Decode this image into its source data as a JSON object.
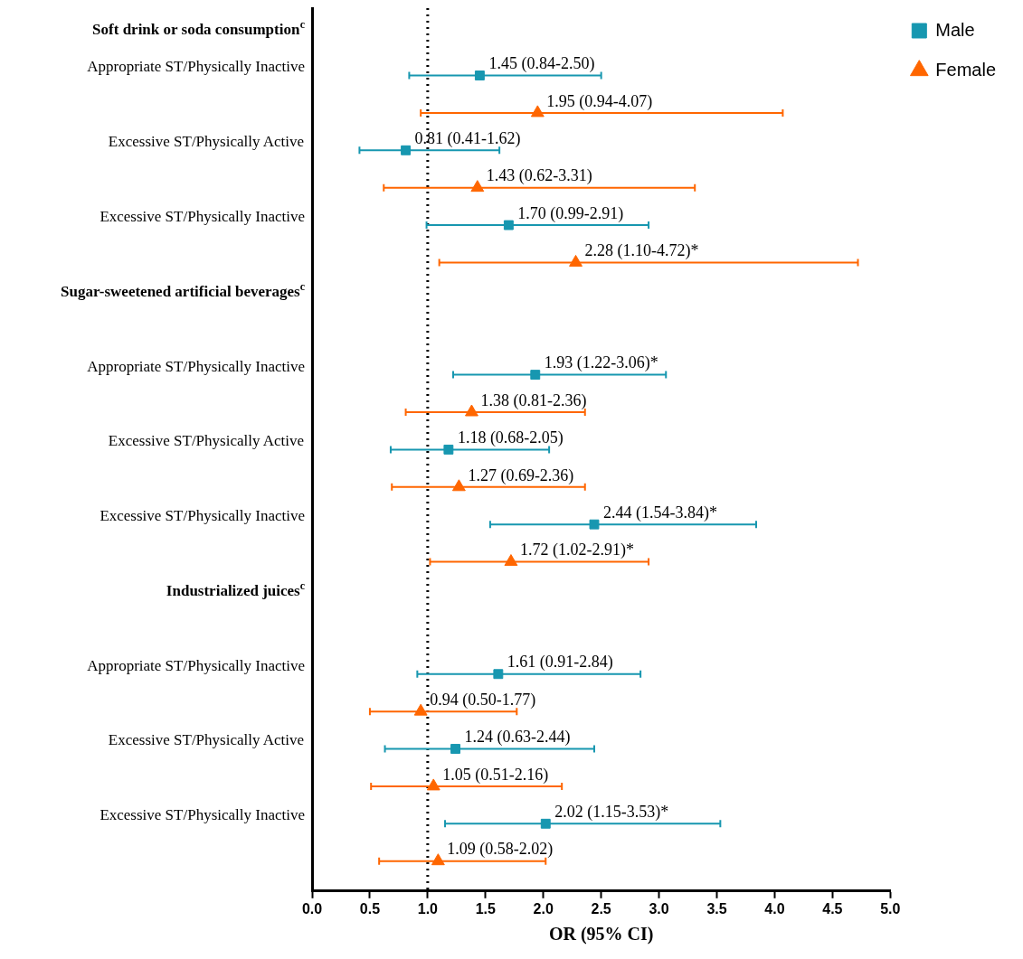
{
  "chart_data": {
    "type": "scatter",
    "orientation": "horizontal",
    "xlabel": "OR (95% CI)",
    "xlim": [
      0,
      5
    ],
    "xticks": [
      {
        "value": 0,
        "label": "0.0"
      },
      {
        "value": 0.5,
        "label": "0.5"
      },
      {
        "value": 1,
        "label": "1.0"
      },
      {
        "value": 1.5,
        "label": "1.5"
      },
      {
        "value": 2,
        "label": "2.0"
      },
      {
        "value": 2.5,
        "label": "2.5"
      },
      {
        "value": 3,
        "label": "3.0"
      },
      {
        "value": 3.5,
        "label": "3.5"
      },
      {
        "value": 4,
        "label": "4.0"
      },
      {
        "value": 4.5,
        "label": "4.5"
      },
      {
        "value": 5,
        "label": "5.0"
      }
    ],
    "categories": [
      "Soft drink or soda consumption$^{c}$",
      "Appropriate ST/Physically Inactive",
      null,
      "Excessive ST/Physically Active",
      null,
      "Excessive ST/Physically Inactive",
      null,
      "Sugar-sweetened artificial beverages$^{c}$",
      null,
      "Appropriate ST/Physically Inactive",
      null,
      "Excessive ST/Physically Active",
      null,
      "Excessive ST/Physically Inactive",
      null,
      "Industrialized juices$^{c}$",
      null,
      "Appropriate ST/Physically Inactive",
      null,
      "Excessive ST/Physically Active",
      null,
      "Excessive ST/Physically Inactive",
      null
    ],
    "series": [
      {
        "name": "Male",
        "color": "#1797b0",
        "marker": "square",
        "values": [
          null,
          1.45,
          null,
          0.81,
          null,
          1.7,
          null,
          null,
          null,
          1.93,
          null,
          1.18,
          null,
          2.44,
          null,
          null,
          null,
          1.61,
          null,
          1.24,
          null,
          2.02,
          null
        ],
        "errors": [
          null,
          [
            0.84,
            2.5
          ],
          null,
          [
            0.41,
            1.62
          ],
          null,
          [
            0.99,
            2.91
          ],
          null,
          null,
          null,
          [
            1.22,
            3.06
          ],
          null,
          [
            0.68,
            2.05
          ],
          null,
          [
            1.54,
            3.84
          ],
          null,
          null,
          null,
          [
            0.91,
            2.84
          ],
          null,
          [
            0.63,
            2.44
          ],
          null,
          [
            1.15,
            3.53
          ],
          null
        ],
        "value_labels": [
          null,
          "1.45 (0.84-2.50)",
          null,
          "0.81 (0.41-1.62)",
          null,
          "1.70 (0.99-2.91)",
          null,
          null,
          null,
          "1.93 (1.22-3.06)*",
          null,
          "1.18 (0.68-2.05)",
          null,
          "2.44 (1.54-3.84)*",
          null,
          null,
          null,
          "1.61 (0.91-2.84)",
          null,
          "1.24 (0.63-2.44)",
          null,
          "2.02 (1.15-3.53)*",
          null
        ]
      },
      {
        "name": "Female",
        "color": "#ff6600",
        "marker": "triangle",
        "values": [
          null,
          null,
          1.95,
          null,
          1.43,
          null,
          2.28,
          null,
          null,
          null,
          1.38,
          null,
          1.27,
          null,
          1.72,
          null,
          null,
          null,
          0.94,
          null,
          1.05,
          null,
          1.09
        ],
        "errors": [
          null,
          null,
          [
            0.94,
            4.07
          ],
          null,
          [
            0.62,
            3.31
          ],
          null,
          [
            1.1,
            4.72
          ],
          null,
          null,
          null,
          [
            0.81,
            2.36
          ],
          null,
          [
            0.69,
            2.36
          ],
          null,
          [
            1.02,
            2.91
          ],
          null,
          null,
          null,
          [
            0.5,
            1.77
          ],
          null,
          [
            0.51,
            2.16
          ],
          null,
          [
            0.58,
            2.02
          ]
        ],
        "value_labels": [
          null,
          null,
          "1.95 (0.94-4.07)",
          null,
          "1.43 (0.62-3.31)",
          null,
          "2.28 (1.10-4.72)*",
          null,
          null,
          null,
          "1.38 (0.81-2.36)",
          null,
          "1.27 (0.69-2.36)",
          null,
          "1.72 (1.02-2.91)*",
          null,
          null,
          null,
          "0.94 (0.50-1.77)",
          null,
          "1.05 (0.51-2.16)",
          null,
          "1.09 (0.58-2.02)"
        ]
      }
    ],
    "ref_lines": [
      {
        "axis": "x",
        "value": 1,
        "color": "#000000",
        "line_style": "dotted"
      }
    ],
    "legend": "top right",
    "grid": false
  }
}
